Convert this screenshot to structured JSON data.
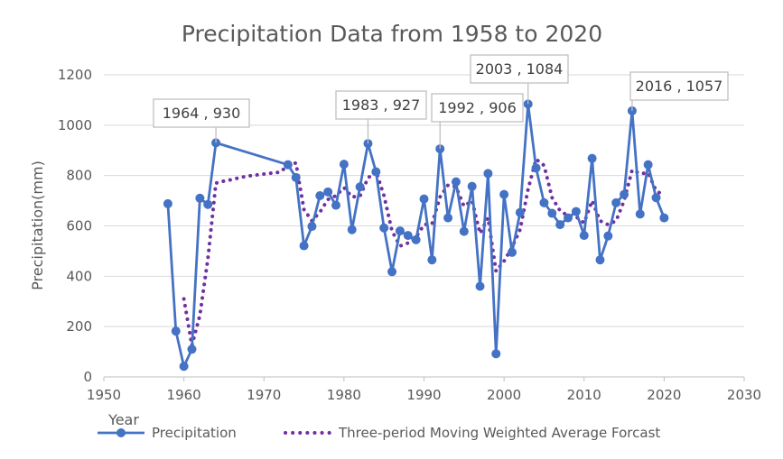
{
  "chart_data": {
    "type": "line",
    "title": "Precipitation Data from 1958 to 2020",
    "xlabel": "Year",
    "ylabel": "Precipitation(mm)",
    "xlim": [
      1950,
      2030
    ],
    "ylim": [
      0,
      1200
    ],
    "xticks": [
      1950,
      1960,
      1970,
      1980,
      1990,
      2000,
      2010,
      2020,
      2030
    ],
    "yticks": [
      0,
      200,
      400,
      600,
      800,
      1000,
      1200
    ],
    "grid": "horizontal",
    "legend_position": "bottom",
    "series": [
      {
        "name": "Precipitation",
        "style": "solid line with circle markers",
        "color": "#4472C4",
        "points": [
          [
            1958,
            688
          ],
          [
            1959,
            182
          ],
          [
            1960,
            42
          ],
          [
            1961,
            110
          ],
          [
            1962,
            710
          ],
          [
            1963,
            685
          ],
          [
            1964,
            930
          ],
          [
            1973,
            843
          ],
          [
            1974,
            792
          ],
          [
            1975,
            521
          ],
          [
            1976,
            598
          ],
          [
            1977,
            720
          ],
          [
            1978,
            735
          ],
          [
            1979,
            682
          ],
          [
            1980,
            845
          ],
          [
            1981,
            585
          ],
          [
            1982,
            755
          ],
          [
            1983,
            927
          ],
          [
            1984,
            815
          ],
          [
            1985,
            592
          ],
          [
            1986,
            418
          ],
          [
            1987,
            580
          ],
          [
            1988,
            562
          ],
          [
            1989,
            545
          ],
          [
            1990,
            707
          ],
          [
            1991,
            465
          ],
          [
            1992,
            906
          ],
          [
            1993,
            632
          ],
          [
            1994,
            775
          ],
          [
            1995,
            578
          ],
          [
            1996,
            757
          ],
          [
            1997,
            360
          ],
          [
            1998,
            808
          ],
          [
            1999,
            92
          ],
          [
            2000,
            725
          ],
          [
            2001,
            495
          ],
          [
            2002,
            653
          ],
          [
            2003,
            1084
          ],
          [
            2004,
            830
          ],
          [
            2005,
            692
          ],
          [
            2006,
            650
          ],
          [
            2007,
            605
          ],
          [
            2008,
            632
          ],
          [
            2009,
            657
          ],
          [
            2010,
            562
          ],
          [
            2011,
            868
          ],
          [
            2012,
            465
          ],
          [
            2013,
            560
          ],
          [
            2014,
            692
          ],
          [
            2015,
            725
          ],
          [
            2016,
            1057
          ],
          [
            2017,
            647
          ],
          [
            2018,
            843
          ],
          [
            2019,
            712
          ],
          [
            2020,
            632
          ]
        ]
      },
      {
        "name": "Three-period Moving Weighted Average Forcast",
        "style": "dotted line",
        "color": "#7030A0",
        "points": [
          [
            1960,
            310
          ],
          [
            1961,
            125
          ],
          [
            1962,
            245
          ],
          [
            1963,
            470
          ],
          [
            1964,
            770
          ],
          [
            1965,
            778
          ],
          [
            1966,
            784
          ],
          [
            1967,
            792
          ],
          [
            1968,
            798
          ],
          [
            1969,
            802
          ],
          [
            1970,
            806
          ],
          [
            1971,
            810
          ],
          [
            1972,
            813
          ],
          [
            1973,
            840
          ],
          [
            1974,
            850
          ],
          [
            1975,
            665
          ],
          [
            1976,
            620
          ],
          [
            1977,
            655
          ],
          [
            1978,
            705
          ],
          [
            1979,
            720
          ],
          [
            1980,
            752
          ],
          [
            1981,
            715
          ],
          [
            1982,
            718
          ],
          [
            1983,
            790
          ],
          [
            1984,
            818
          ],
          [
            1985,
            720
          ],
          [
            1986,
            580
          ],
          [
            1987,
            520
          ],
          [
            1988,
            532
          ],
          [
            1989,
            555
          ],
          [
            1990,
            605
          ],
          [
            1991,
            608
          ],
          [
            1992,
            715
          ],
          [
            1993,
            762
          ],
          [
            1994,
            755
          ],
          [
            1995,
            678
          ],
          [
            1996,
            700
          ],
          [
            1997,
            570
          ],
          [
            1998,
            632
          ],
          [
            1999,
            420
          ],
          [
            2000,
            460
          ],
          [
            2001,
            515
          ],
          [
            2002,
            585
          ],
          [
            2003,
            745
          ],
          [
            2004,
            865
          ],
          [
            2005,
            840
          ],
          [
            2006,
            712
          ],
          [
            2007,
            660
          ],
          [
            2008,
            640
          ],
          [
            2009,
            636
          ],
          [
            2010,
            612
          ],
          [
            2011,
            700
          ],
          [
            2012,
            620
          ],
          [
            2013,
            605
          ],
          [
            2014,
            620
          ],
          [
            2015,
            700
          ],
          [
            2016,
            822
          ],
          [
            2017,
            808
          ],
          [
            2018,
            810
          ],
          [
            2019,
            740
          ],
          [
            2020,
            720
          ]
        ]
      }
    ],
    "annotations": [
      {
        "text": "1964 , 930",
        "x": 1964,
        "y": 930
      },
      {
        "text": "1983 , 927",
        "x": 1983,
        "y": 927
      },
      {
        "text": "1992 , 906",
        "x": 1992,
        "y": 906
      },
      {
        "text": "2003 , 1084",
        "x": 2003,
        "y": 1084
      },
      {
        "text": "2016 , 1057",
        "x": 2016,
        "y": 1057
      }
    ]
  }
}
